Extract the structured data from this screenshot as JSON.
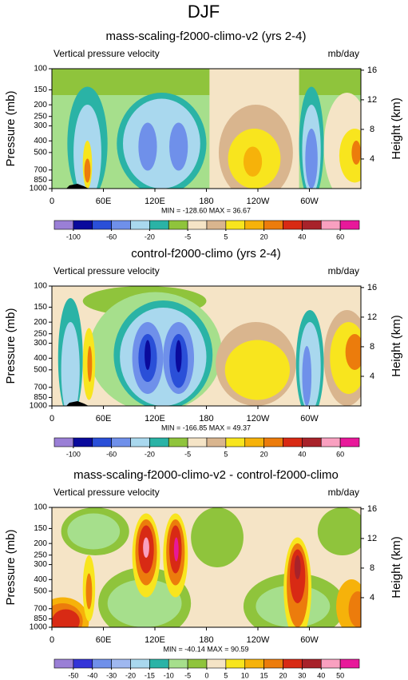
{
  "title": "DJF",
  "chart_data": [
    {
      "type": "contour",
      "title": "mass-scaling-f2000-climo-v2 (yrs 2-4)",
      "left_label": "Vertical pressure velocity",
      "right_label": "mb/day",
      "y_label": "Pressure (mb)",
      "y2_label": "Height (km)",
      "xlim": [
        0,
        360
      ],
      "xticks": [
        0,
        {
          "value": 60,
          "label": "60E"
        },
        {
          "value": 120,
          "label": "120E"
        },
        180,
        {
          "value": 240,
          "label": "120W"
        },
        {
          "value": 300,
          "label": "60W"
        }
      ],
      "ylim": [
        1000,
        100
      ],
      "ylog": true,
      "yticks": [
        100,
        150,
        200,
        250,
        300,
        400,
        500,
        700,
        850,
        1000
      ],
      "y2lim": [
        0,
        16.2
      ],
      "y2ticks": [
        4,
        8,
        12,
        16
      ],
      "stats": "MIN = -128.60  MAX = 36.67",
      "colorbar": {
        "ticks": [
          -100,
          -60,
          -20,
          -5,
          5,
          20,
          40,
          60
        ],
        "colors": [
          "#9a7fd6",
          "#0a0a9c",
          "#2a4fd8",
          "#6f90ea",
          "#a9d8ee",
          "#2ab3a6",
          "#8fc43c",
          "#f5e4c6",
          "#d9b58e",
          "#f8e51e",
          "#f6b20a",
          "#ec7c0c",
          "#d82a14",
          "#a8222a",
          "#f9a0c0",
          "#e8189a"
        ]
      }
    },
    {
      "type": "contour",
      "title": "control-f2000-climo (yrs 2-4)",
      "left_label": "Vertical pressure velocity",
      "right_label": "mb/day",
      "y_label": "Pressure (mb)",
      "y2_label": "Height (km)",
      "xlim": [
        0,
        360
      ],
      "xticks": [
        0,
        {
          "value": 60,
          "label": "60E"
        },
        {
          "value": 120,
          "label": "120E"
        },
        180,
        {
          "value": 240,
          "label": "120W"
        },
        {
          "value": 300,
          "label": "60W"
        }
      ],
      "ylim": [
        1000,
        100
      ],
      "ylog": true,
      "yticks": [
        100,
        150,
        200,
        250,
        300,
        400,
        500,
        700,
        850,
        1000
      ],
      "y2lim": [
        0,
        16.2
      ],
      "y2ticks": [
        4,
        8,
        12,
        16
      ],
      "stats": "MIN = -166.85  MAX = 49.37",
      "colorbar": {
        "ticks": [
          -100,
          -60,
          -20,
          -5,
          5,
          20,
          40,
          60
        ],
        "colors": [
          "#9a7fd6",
          "#0a0a9c",
          "#2a4fd8",
          "#6f90ea",
          "#a9d8ee",
          "#2ab3a6",
          "#8fc43c",
          "#f5e4c6",
          "#d9b58e",
          "#f8e51e",
          "#f6b20a",
          "#ec7c0c",
          "#d82a14",
          "#a8222a",
          "#f9a0c0",
          "#e8189a"
        ]
      }
    },
    {
      "type": "contour",
      "title": "mass-scaling-f2000-climo-v2 - control-f2000-climo",
      "left_label": "Vertical pressure velocity",
      "right_label": "mb/day",
      "y_label": "Pressure (mb)",
      "y2_label": "Height (km)",
      "xlim": [
        0,
        360
      ],
      "xticks": [
        0,
        {
          "value": 60,
          "label": "60E"
        },
        {
          "value": 120,
          "label": "120E"
        },
        180,
        {
          "value": 240,
          "label": "120W"
        },
        {
          "value": 300,
          "label": "60W"
        }
      ],
      "ylim": [
        1000,
        100
      ],
      "ylog": true,
      "yticks": [
        100,
        150,
        200,
        250,
        300,
        400,
        500,
        700,
        850,
        1000
      ],
      "y2lim": [
        0,
        16.2
      ],
      "y2ticks": [
        4,
        8,
        12,
        16
      ],
      "stats": "MIN = -40.14  MAX = 90.59",
      "colorbar": {
        "ticks": [
          -50,
          -40,
          -30,
          -20,
          -15,
          -10,
          -5,
          0,
          5,
          10,
          15,
          20,
          30,
          40,
          50
        ],
        "colors": [
          "#9a7fd6",
          "#3434d8",
          "#6f90ea",
          "#9fb8f0",
          "#a9d8ee",
          "#2ab3a6",
          "#a6df8c",
          "#8fc43c",
          "#f5e4c6",
          "#f8e51e",
          "#f6b20a",
          "#ec7c0c",
          "#d82a14",
          "#a8222a",
          "#f9a0c0",
          "#e8189a"
        ]
      }
    }
  ]
}
